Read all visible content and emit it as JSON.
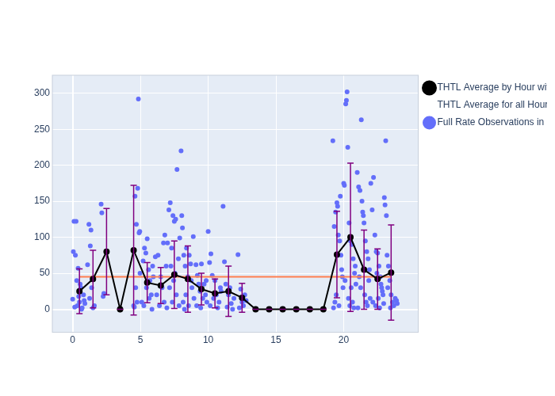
{
  "chart_data": {
    "type": "scatter",
    "xlim": [
      -1.5,
      25.5
    ],
    "xticks": [
      0,
      5,
      10,
      15,
      20
    ],
    "ylim": [
      -32,
      325
    ],
    "yticks": [
      0,
      50,
      100,
      150,
      200,
      250,
      300
    ],
    "grid": true,
    "legend": "right",
    "series": [
      {
        "name": "Full Rate Observations in a Normal Point",
        "type": "scatter",
        "marker": "circle",
        "color": "#636efa",
        "x": [
          0.0,
          0.05,
          0.1,
          0.2,
          0.25,
          0.3,
          0.35,
          0.4,
          0.5,
          0.6,
          0.7,
          0.8,
          0.9,
          0.15,
          0.45,
          0.55,
          0.65,
          0.85,
          1.1,
          1.2,
          1.3,
          1.35,
          1.45,
          1.5,
          1.6,
          1.4,
          1.25,
          2.1,
          2.15,
          2.3,
          2.25,
          4.5,
          4.6,
          4.7,
          4.8,
          4.85,
          4.9,
          4.95,
          4.55,
          4.65,
          4.75,
          4.97,
          5.2,
          5.3,
          5.4,
          5.5,
          5.6,
          5.7,
          5.8,
          5.9,
          5.1,
          5.25,
          5.45,
          5.65,
          5.85,
          5.95,
          6.1,
          6.3,
          6.5,
          6.7,
          6.8,
          6.9,
          6.2,
          6.4,
          6.6,
          6.75,
          6.95,
          7.0,
          7.1,
          7.2,
          7.3,
          7.4,
          7.5,
          7.6,
          7.7,
          7.8,
          7.9,
          7.15,
          7.35,
          7.55,
          7.65,
          7.85,
          7.25,
          7.45,
          8.0,
          8.05,
          8.1,
          8.2,
          8.3,
          8.4,
          8.5,
          8.6,
          8.7,
          8.8,
          8.9,
          8.15,
          8.35,
          8.55,
          8.75,
          8.95,
          8.25,
          9.1,
          9.2,
          9.3,
          9.5,
          9.7,
          9.8,
          9.9,
          9.15,
          9.4,
          9.6,
          9.85,
          9.45,
          10.0,
          10.1,
          10.2,
          10.3,
          10.5,
          10.6,
          10.8,
          10.9,
          10.15,
          10.4,
          10.7,
          10.95,
          11.1,
          11.2,
          11.3,
          11.5,
          11.7,
          11.9,
          11.4,
          11.6,
          11.8,
          12.2,
          12.4,
          12.5,
          12.6,
          12.7,
          12.3,
          12.8,
          19.2,
          19.3,
          19.4,
          19.5,
          19.55,
          19.6,
          19.7,
          19.75,
          19.8,
          19.85,
          19.9,
          19.45,
          19.65,
          19.35,
          19.95,
          19.25,
          20.0,
          20.05,
          20.2,
          20.25,
          20.3,
          20.15,
          20.4,
          20.5,
          20.6,
          20.7,
          20.8,
          20.9,
          20.35,
          20.45,
          20.55,
          20.65,
          20.75,
          20.85,
          20.1,
          21.0,
          21.1,
          21.2,
          21.3,
          21.35,
          21.4,
          21.45,
          21.5,
          21.6,
          21.7,
          21.8,
          21.9,
          21.15,
          21.25,
          21.55,
          21.65,
          21.75,
          21.85,
          21.95,
          21.05,
          22.0,
          22.1,
          22.2,
          22.3,
          22.4,
          22.5,
          22.6,
          22.7,
          22.8,
          22.9,
          22.15,
          22.35,
          22.45,
          22.55,
          22.65,
          22.75,
          22.85,
          22.95,
          23.0,
          23.05,
          23.1,
          23.15,
          23.2,
          23.3,
          23.4,
          23.5,
          23.6,
          23.7,
          23.8,
          23.25,
          23.45,
          23.9,
          23.95
        ],
        "values": [
          14,
          80,
          122,
          75,
          122,
          40,
          5,
          57,
          10,
          30,
          2,
          20,
          8,
          3,
          18,
          35,
          0,
          12,
          62,
          118,
          88,
          110,
          42,
          2,
          5,
          30,
          15,
          146,
          134,
          22,
          18,
          5,
          157,
          118,
          168,
          292,
          106,
          108,
          3,
          30,
          10,
          50,
          67,
          85,
          78,
          98,
          55,
          40,
          20,
          60,
          10,
          5,
          30,
          15,
          0,
          45,
          73,
          75,
          45,
          92,
          103,
          60,
          20,
          5,
          30,
          10,
          2,
          92,
          138,
          148,
          85,
          130,
          122,
          125,
          194,
          70,
          99,
          30,
          10,
          50,
          20,
          5,
          60,
          40,
          220,
          130,
          113,
          75,
          60,
          85,
          45,
          75,
          63,
          30,
          101,
          10,
          20,
          5,
          40,
          15,
          0,
          62,
          47,
          35,
          63,
          35,
          20,
          10,
          5,
          25,
          15,
          40,
          2,
          108,
          65,
          77,
          47,
          40,
          20,
          10,
          30,
          5,
          15,
          2,
          25,
          143,
          66,
          35,
          20,
          8,
          15,
          3,
          30,
          0,
          76,
          28,
          10,
          5,
          20,
          2,
          12,
          234,
          115,
          135,
          148,
          143,
          103,
          95,
          157,
          75,
          55,
          45,
          20,
          5,
          10,
          30,
          2,
          175,
          172,
          290,
          302,
          225,
          285,
          120,
          95,
          90,
          70,
          50,
          35,
          15,
          5,
          30,
          10,
          2,
          60,
          40,
          190,
          170,
          165,
          263,
          150,
          135,
          130,
          120,
          95,
          80,
          70,
          55,
          45,
          30,
          20,
          10,
          5,
          40,
          15,
          2,
          175,
          138,
          183,
          103,
          80,
          78,
          60,
          45,
          30,
          20,
          10,
          5,
          50,
          15,
          2,
          35,
          25,
          8,
          155,
          145,
          234,
          130,
          75,
          60,
          40,
          20,
          10,
          5,
          15,
          30,
          2,
          12,
          8
        ]
      },
      {
        "name": "THTL Average by Hour with STD",
        "type": "line",
        "marker": "circle",
        "color": "#000000",
        "x": [
          0.5,
          1.5,
          2.5,
          3.5,
          4.5,
          5.5,
          6.5,
          7.5,
          8.5,
          9.5,
          10.5,
          11.5,
          12.5,
          13.5,
          14.5,
          15.5,
          16.5,
          17.5,
          18.5,
          19.5,
          20.5,
          21.5,
          22.5,
          23.5
        ],
        "values": [
          25,
          42,
          80,
          0,
          82,
          37,
          33,
          48,
          42,
          28,
          22,
          25,
          16,
          0,
          0,
          0,
          0,
          0,
          0,
          76,
          100,
          55,
          42,
          51
        ],
        "std": [
          31,
          40,
          60,
          0,
          90,
          28,
          25,
          47,
          46,
          22,
          20,
          35,
          20,
          0,
          0,
          0,
          0,
          0,
          0,
          60,
          103,
          55,
          42,
          66
        ]
      },
      {
        "name": "THTL Average for all Hours",
        "type": "line",
        "color": "#ff7f50",
        "x": [
          0.5,
          23.5
        ],
        "values": [
          45,
          45
        ]
      }
    ]
  }
}
